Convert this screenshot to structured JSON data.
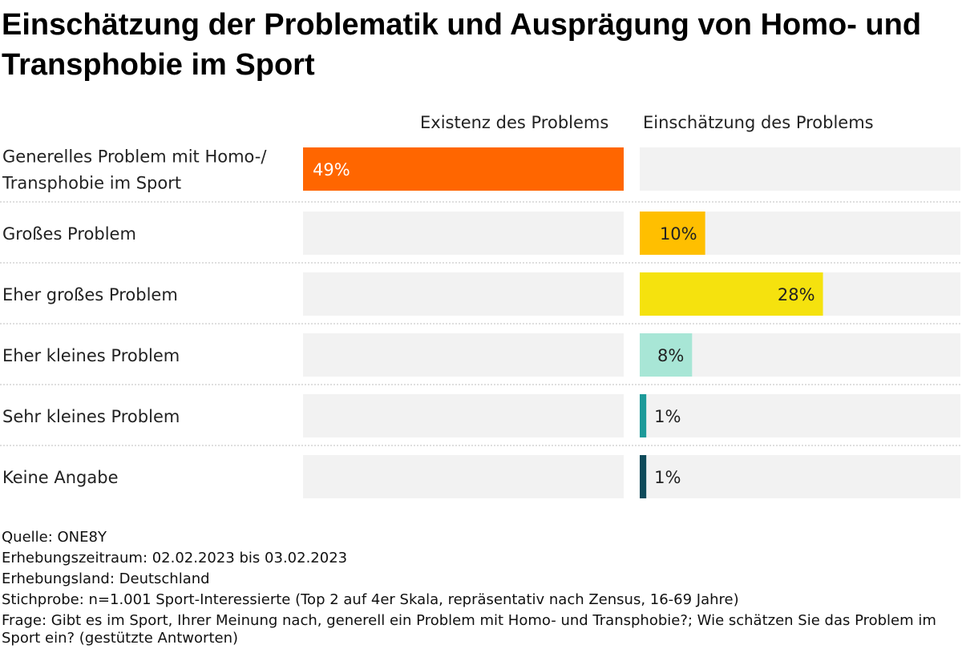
{
  "title": "Einschätzung der Problematik und Ausprägung von Homo- und Transphobie im Sport",
  "colors": {
    "track": "#f2f2f2",
    "separator": "#bfbfbf",
    "text": "#222222",
    "bars": [
      "#ff6600",
      "#ffbf00",
      "#f5e20e",
      "#a8e6d6",
      "#1c9a99",
      "#0e4a5a"
    ]
  },
  "chart_data": {
    "type": "bar",
    "orientation": "horizontal",
    "unit": "%",
    "columns": [
      "Existenz des Problems",
      "Einschätzung des Problems"
    ],
    "categories": [
      "Generelles Problem mit Homo-/ Transphobie im Sport",
      "Großes Problem",
      "Eher großes Problem",
      "Eher kleines Problem",
      "Sehr kleines Problem",
      "Keine Angabe"
    ],
    "category_lines": [
      [
        "Generelles Problem mit Homo-/",
        "Transphobie im Sport"
      ],
      [
        "Großes Problem"
      ],
      [
        "Eher großes Problem"
      ],
      [
        "Eher kleines Problem"
      ],
      [
        "Sehr kleines Problem"
      ],
      [
        "Keine Angabe"
      ]
    ],
    "values": [
      {
        "column": 0,
        "value": 49,
        "label": "49%"
      },
      {
        "column": 1,
        "value": 10,
        "label": "10%"
      },
      {
        "column": 1,
        "value": 28,
        "label": "28%"
      },
      {
        "column": 1,
        "value": 8,
        "label": "8%"
      },
      {
        "column": 1,
        "value": 1,
        "label": "1%"
      },
      {
        "column": 1,
        "value": 1,
        "label": "1%"
      }
    ],
    "xlim": [
      0,
      49
    ]
  },
  "source": {
    "lines": [
      "Quelle: ONE8Y",
      "Erhebungszeitraum: 02.02.2023 bis 03.02.2023",
      "Erhebungsland: Deutschland",
      "Stichprobe: n=1.001 Sport-Interessierte (Top 2 auf 4er Skala, repräsentativ nach Zensus, 16-69 Jahre)",
      "Frage: Gibt es im Sport, Ihrer Meinung nach, generell ein Problem mit Homo- und Transphobie?; Wie schätzen Sie das Problem im Sport ein? (gestützte Antworten)"
    ]
  }
}
